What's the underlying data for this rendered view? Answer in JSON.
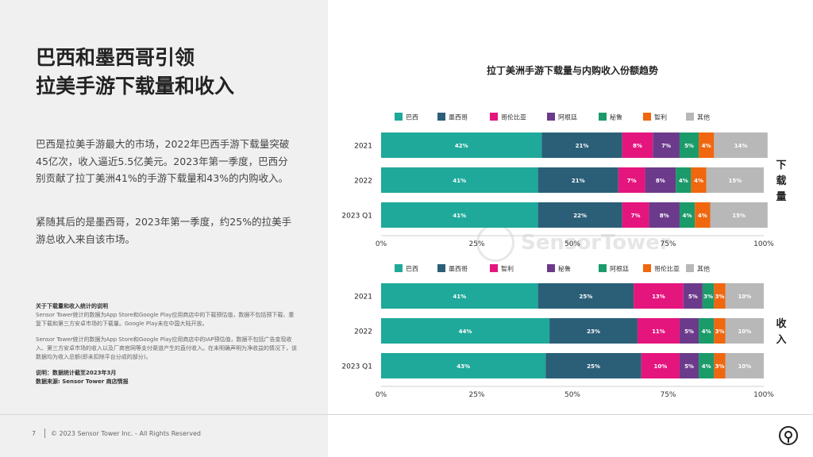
{
  "left": {
    "title_lines": [
      "巴西和墨西哥引领",
      "拉美手游下载量和收入"
    ],
    "paragraph1": "巴西是拉美手游最大的市场，2022年巴西手游下载量突破45亿次，收入逼近5.5亿美元。2023年第一季度，巴西分别贡献了拉丁美洲41%的手游下载量和43%的内购收入。",
    "paragraph2": "紧随其后的是墨西哥，2023年第一季度，约25%的拉美手游总收入来自该市场。",
    "notes": {
      "title": "关于下载量和收入统计的说明",
      "text1": "Sensor Tower统计的数据为App Store和Google Play应用商店中的下载预估值，数据不包括预下载、重复下载和第三方安卓市场的下载量。Google Play未在中国大陆开放。",
      "text2": "Sensor Tower统计的数据为App Store和Google Play应用商店中的IAP预估值，数据不包括广告变现收入、第三方安卓市场的收入以及厂商官网等支付渠道产生的直付收入。在未明确声明为净收益的情况下，该数据均为收入总额(即未扣除平台分成的部分)。",
      "explain": "说明：数据统计截至2023年3月",
      "source": "数据来源: Sensor Tower 商店情报"
    }
  },
  "footer": {
    "page_number": "7",
    "copyright": "© 2023 Sensor Tower Inc. - All Rights Reserved"
  },
  "watermark": "SensorTower",
  "chart_title": "拉丁美洲手游下载量与内购收入份额趋势",
  "side_labels": {
    "downloads": [
      "下",
      "载",
      "量"
    ],
    "revenue": [
      "收",
      "入"
    ]
  },
  "chart_data": [
    {
      "type": "bar",
      "orientation": "horizontal",
      "stacked": true,
      "side_label": "下载量",
      "categories": [
        "2021",
        "2022",
        "2023 Q1"
      ],
      "series": [
        {
          "name": "巴西",
          "color": "#1fa99a",
          "values": [
            42,
            41,
            41
          ]
        },
        {
          "name": "墨西哥",
          "color": "#2b5f78",
          "values": [
            21,
            21,
            22
          ]
        },
        {
          "name": "哥伦比亚",
          "color": "#e5157e",
          "values": [
            8,
            7,
            7
          ]
        },
        {
          "name": "阿根廷",
          "color": "#6c3a8b",
          "values": [
            7,
            8,
            8
          ]
        },
        {
          "name": "秘鲁",
          "color": "#1b9b6a",
          "values": [
            5,
            4,
            4
          ]
        },
        {
          "name": "智利",
          "color": "#f0670f",
          "values": [
            4,
            4,
            4
          ]
        },
        {
          "name": "其他",
          "color": "#b8b8b8",
          "values": [
            14,
            15,
            15
          ]
        }
      ],
      "xlim": [
        0,
        100
      ],
      "xticks": [
        "0%",
        "25%",
        "50%",
        "75%",
        "100%"
      ],
      "legend_position": "top"
    },
    {
      "type": "bar",
      "orientation": "horizontal",
      "stacked": true,
      "side_label": "收入",
      "categories": [
        "2021",
        "2022",
        "2023 Q1"
      ],
      "series": [
        {
          "name": "巴西",
          "color": "#1fa99a",
          "values": [
            41,
            44,
            43
          ]
        },
        {
          "name": "墨西哥",
          "color": "#2b5f78",
          "values": [
            25,
            23,
            25
          ]
        },
        {
          "name": "智利",
          "color": "#e5157e",
          "values": [
            13,
            11,
            10
          ]
        },
        {
          "name": "秘鲁",
          "color": "#6c3a8b",
          "values": [
            5,
            5,
            5
          ]
        },
        {
          "name": "阿根廷",
          "color": "#1b9b6a",
          "values": [
            3,
            4,
            4
          ]
        },
        {
          "name": "哥伦比亚",
          "color": "#f0670f",
          "values": [
            3,
            3,
            3
          ]
        },
        {
          "name": "其他",
          "color": "#b8b8b8",
          "values": [
            10,
            10,
            10
          ]
        }
      ],
      "xlim": [
        0,
        100
      ],
      "xticks": [
        "0%",
        "25%",
        "50%",
        "75%",
        "100%"
      ],
      "legend_position": "top"
    }
  ]
}
